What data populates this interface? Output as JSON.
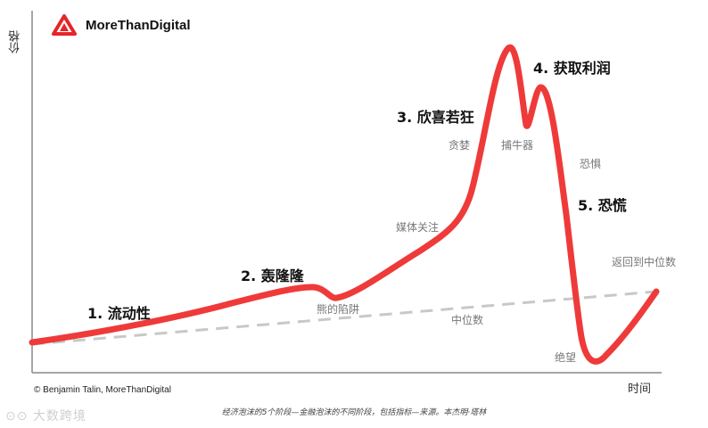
{
  "brand": {
    "name": "MoreThanDigital",
    "accent": "#e5252a"
  },
  "axes": {
    "y_label": "价格",
    "x_label": "时间"
  },
  "stages": {
    "s1": "1. 流动性",
    "s2": "2. 轰隆隆",
    "s3": "3. 欣喜若狂",
    "s4": "4. 获取利润",
    "s5": "5. 恐慌"
  },
  "annotations": {
    "bear_trap": "熊的陷阱",
    "median": "中位数",
    "media_attention": "媒体关注",
    "greed": "贪婪",
    "sucker": "捕牛器",
    "fear": "恐惧",
    "despair": "绝望",
    "return_to_median": "返回到中位数"
  },
  "footer": {
    "copyright": "© Benjamin Talin, MoreThanDigital",
    "caption": "经济泡沫的5个阶段—金融泡沫的不同阶段，包括指标—来源。本杰明·塔林",
    "watermark": "大数跨境"
  },
  "colors": {
    "curve": "#ef3a3a",
    "median_line": "#c8c8c8",
    "axis": "#888888"
  }
}
